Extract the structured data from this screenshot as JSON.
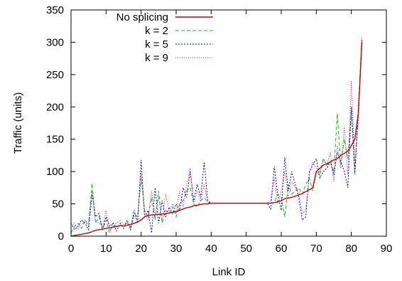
{
  "chart_data": {
    "type": "line",
    "xlabel": "Link ID",
    "ylabel": "Traffic (units)",
    "xlim": [
      0,
      90
    ],
    "ylim": [
      0,
      350
    ],
    "xticks": [
      "0",
      "10",
      "20",
      "30",
      "40",
      "50",
      "60",
      "70",
      "80",
      "90"
    ],
    "yticks": [
      "0",
      "50",
      "100",
      "150",
      "200",
      "250",
      "300",
      "350"
    ],
    "grid": false,
    "legend_position": "top-left",
    "series": [
      {
        "name": "No splicing",
        "color": "#cc0000",
        "dash": "solid",
        "x": [
          0,
          1,
          2,
          3,
          4,
          5,
          6,
          7,
          8,
          9,
          10,
          11,
          12,
          13,
          14,
          15,
          16,
          17,
          18,
          19,
          20,
          21,
          22,
          23,
          24,
          25,
          26,
          27,
          28,
          29,
          30,
          31,
          32,
          33,
          34,
          35,
          36,
          37,
          38,
          39,
          40,
          45,
          50,
          55,
          56,
          57,
          58,
          59,
          60,
          61,
          62,
          63,
          64,
          65,
          66,
          67,
          68,
          69,
          70,
          71,
          72,
          73,
          74,
          75,
          76,
          77,
          78,
          79,
          80,
          81,
          82,
          83
        ],
        "y": [
          0,
          1,
          2,
          3,
          4,
          5,
          7,
          9,
          10,
          11,
          12,
          13,
          14,
          15,
          16,
          16,
          17,
          18,
          20,
          22,
          25,
          30,
          32,
          33,
          33,
          34,
          34,
          35,
          36,
          37,
          38,
          40,
          42,
          44,
          45,
          47,
          48,
          49,
          50,
          50,
          51,
          51,
          51,
          51,
          51,
          51,
          52,
          53,
          55,
          58,
          59,
          60,
          62,
          64,
          66,
          69,
          72,
          75,
          100,
          105,
          110,
          112,
          115,
          118,
          120,
          125,
          128,
          132,
          140,
          150,
          190,
          300
        ]
      },
      {
        "name": "k = 2",
        "color": "#00cc00",
        "dash": "5,3",
        "x": [
          0,
          1,
          2,
          3,
          4,
          5,
          6,
          7,
          8,
          9,
          10,
          11,
          12,
          13,
          14,
          15,
          16,
          17,
          18,
          19,
          20,
          21,
          22,
          23,
          24,
          25,
          26,
          27,
          28,
          29,
          30,
          31,
          32,
          33,
          34,
          35,
          36,
          37,
          38,
          39,
          40,
          45,
          50,
          55,
          56,
          57,
          58,
          59,
          60,
          61,
          62,
          63,
          64,
          65,
          66,
          67,
          68,
          69,
          70,
          71,
          72,
          73,
          74,
          75,
          76,
          77,
          78,
          79,
          80,
          81,
          82,
          83
        ],
        "y": [
          5,
          15,
          20,
          12,
          25,
          15,
          82,
          20,
          30,
          10,
          25,
          5,
          20,
          15,
          18,
          14,
          22,
          12,
          35,
          30,
          90,
          40,
          30,
          60,
          25,
          70,
          20,
          40,
          35,
          45,
          30,
          50,
          55,
          70,
          75,
          50,
          45,
          55,
          60,
          52,
          51,
          51,
          51,
          51,
          51,
          51,
          52,
          65,
          60,
          30,
          80,
          65,
          70,
          75,
          65,
          80,
          90,
          70,
          100,
          95,
          120,
          110,
          115,
          100,
          190,
          110,
          150,
          120,
          195,
          95,
          200,
          305
        ]
      },
      {
        "name": "k = 5",
        "color": "#0000cc",
        "dash": "2,2",
        "x": [
          0,
          1,
          2,
          3,
          4,
          5,
          6,
          7,
          8,
          9,
          10,
          11,
          12,
          13,
          14,
          15,
          16,
          17,
          18,
          19,
          20,
          21,
          22,
          23,
          24,
          25,
          26,
          27,
          28,
          29,
          30,
          31,
          32,
          33,
          34,
          35,
          36,
          37,
          38,
          39,
          40,
          45,
          50,
          55,
          56,
          57,
          58,
          59,
          60,
          61,
          62,
          63,
          64,
          65,
          66,
          67,
          68,
          69,
          70,
          71,
          72,
          73,
          74,
          75,
          76,
          77,
          78,
          79,
          80,
          81,
          82,
          83
        ],
        "y": [
          20,
          10,
          15,
          25,
          20,
          10,
          65,
          30,
          35,
          10,
          30,
          15,
          20,
          8,
          20,
          12,
          25,
          10,
          40,
          20,
          118,
          30,
          40,
          5,
          75,
          20,
          55,
          30,
          45,
          35,
          50,
          40,
          75,
          60,
          100,
          55,
          80,
          60,
          115,
          55,
          51,
          51,
          51,
          51,
          51,
          42,
          108,
          65,
          40,
          122,
          70,
          100,
          80,
          60,
          25,
          30,
          100,
          110,
          120,
          90,
          100,
          105,
          115,
          95,
          130,
          115,
          100,
          75,
          200,
          98,
          190,
          305
        ]
      },
      {
        "name": "k = 9",
        "color": "#cc00cc",
        "dash": "1,2",
        "x": [
          0,
          1,
          2,
          3,
          4,
          5,
          6,
          7,
          8,
          9,
          10,
          11,
          12,
          13,
          14,
          15,
          16,
          17,
          18,
          19,
          20,
          21,
          22,
          23,
          24,
          25,
          26,
          27,
          28,
          29,
          30,
          31,
          32,
          33,
          34,
          35,
          36,
          37,
          38,
          39,
          40,
          45,
          50,
          55,
          56,
          57,
          58,
          59,
          60,
          61,
          62,
          63,
          64,
          65,
          66,
          67,
          68,
          69,
          70,
          71,
          72,
          73,
          74,
          75,
          76,
          77,
          78,
          79,
          80,
          81,
          82,
          83
        ],
        "y": [
          15,
          20,
          10,
          18,
          25,
          20,
          70,
          25,
          20,
          15,
          40,
          10,
          15,
          20,
          25,
          18,
          20,
          15,
          30,
          25,
          100,
          35,
          25,
          70,
          30,
          60,
          25,
          65,
          40,
          50,
          35,
          70,
          45,
          80,
          105,
          50,
          70,
          55,
          80,
          53,
          51,
          51,
          51,
          51,
          51,
          55,
          90,
          50,
          70,
          100,
          60,
          85,
          75,
          70,
          35,
          40,
          95,
          115,
          105,
          100,
          120,
          110,
          130,
          85,
          140,
          105,
          170,
          95,
          240,
          110,
          180,
          310
        ]
      }
    ]
  }
}
